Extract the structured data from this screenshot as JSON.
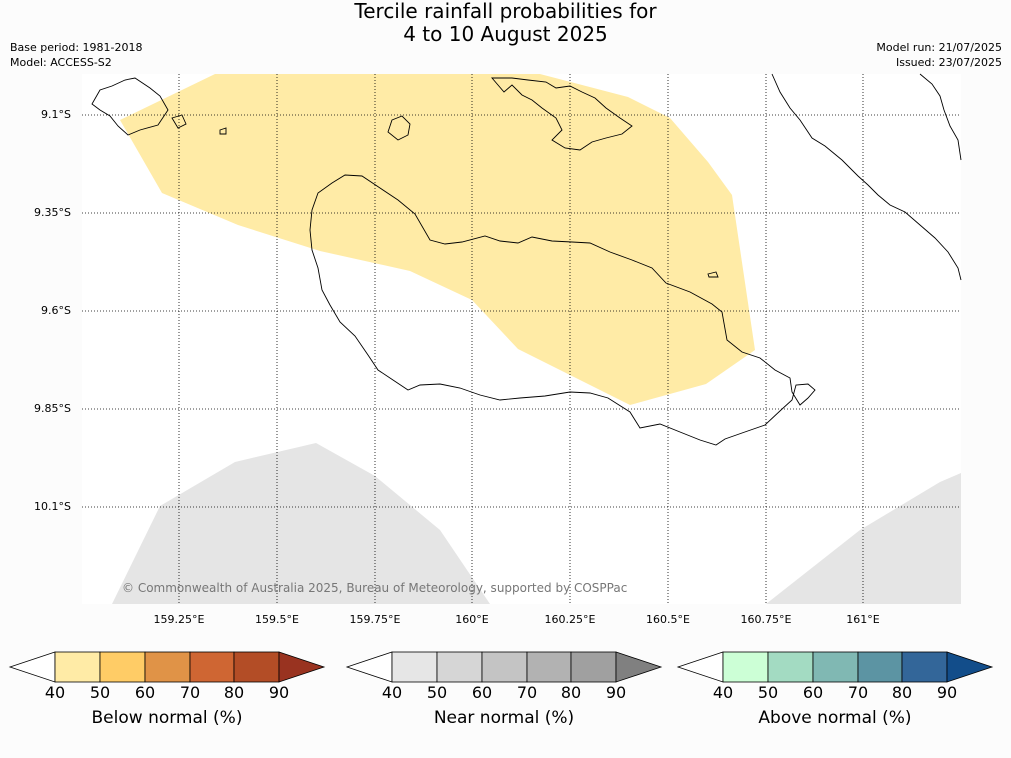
{
  "title": {
    "line1": "Tercile rainfall probabilities for",
    "line2": "4 to 10 August 2025"
  },
  "meta": {
    "base_period": "Base period: 1981-2018",
    "model": "Model: ACCESS-S2",
    "model_run": "Model run: 21/07/2025",
    "issued": "Issued: 23/07/2025"
  },
  "axes": {
    "lat_labels": [
      "9.1°S",
      "9.35°S",
      "9.6°S",
      "9.85°S",
      "10.1°S"
    ],
    "lon_labels": [
      "159.25°E",
      "159.5°E",
      "159.75°E",
      "160°E",
      "160.25°E",
      "160.5°E",
      "160.75°E",
      "161°E"
    ]
  },
  "map_regions": [
    {
      "category": "Below normal",
      "probability_band": "40-50",
      "color": "#ffeba6"
    },
    {
      "category": "Near normal",
      "probability_band": "40-50",
      "color": "#e5e5e5"
    }
  ],
  "copyright": "© Commonwealth of Australia 2025, Bureau of Meteorology, supported by COSPPac",
  "colorbars": [
    {
      "label": "Below normal (%)",
      "ticks": [
        "40",
        "50",
        "60",
        "70",
        "80",
        "90"
      ],
      "colors": [
        "#ffffff",
        "#ffeba6",
        "#ffcc66",
        "#e09347",
        "#cf6633",
        "#b34d26",
        "#993320"
      ]
    },
    {
      "label": "Near normal (%)",
      "ticks": [
        "40",
        "50",
        "60",
        "70",
        "80",
        "90"
      ],
      "colors": [
        "#ffffff",
        "#e6e6e6",
        "#d6d6d6",
        "#c4c4c4",
        "#b2b2b2",
        "#a0a0a0",
        "#808080"
      ]
    },
    {
      "label": "Above normal (%)",
      "ticks": [
        "40",
        "50",
        "60",
        "70",
        "80",
        "90"
      ],
      "colors": [
        "#ffffff",
        "#ccffd6",
        "#a3dbc2",
        "#80b8b3",
        "#5c94a3",
        "#336699",
        "#124d8a"
      ]
    }
  ]
}
